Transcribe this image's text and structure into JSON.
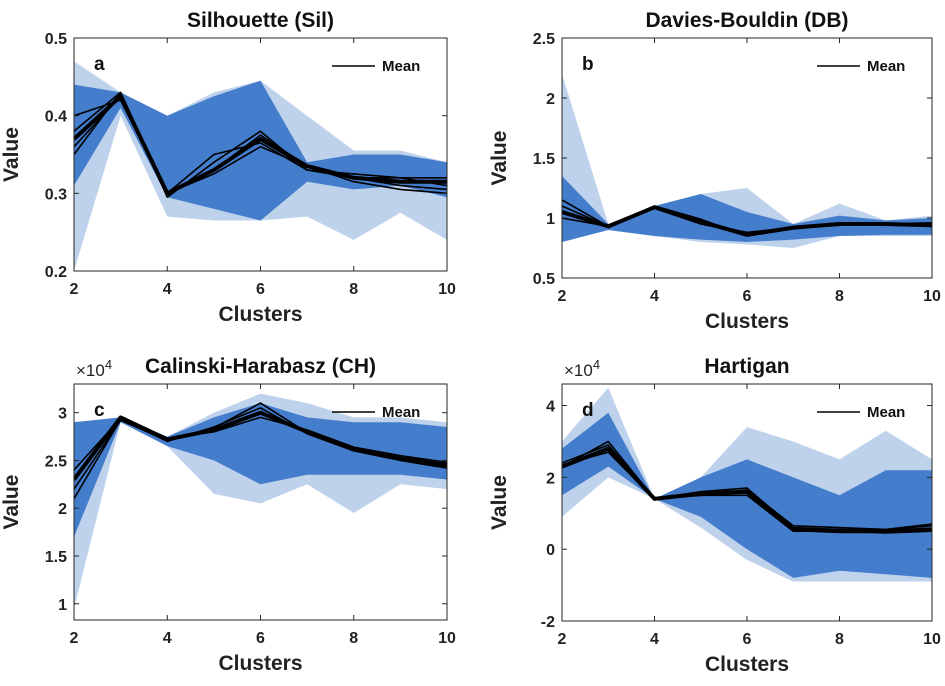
{
  "figure": {
    "theme": {
      "band_color": "#3a75c9",
      "light_band": "#a9c3e6",
      "line_color": "#000000"
    }
  },
  "chart_data": [
    {
      "panel": "a",
      "type": "line",
      "title": "Silhouette (Sil)",
      "xlabel": "Clusters",
      "ylabel": "Value",
      "x": [
        2,
        3,
        4,
        5,
        6,
        7,
        8,
        9,
        10
      ],
      "xlim": [
        2,
        10
      ],
      "ylim": [
        0.2,
        0.5
      ],
      "xticks": [
        2,
        4,
        6,
        8,
        10
      ],
      "yticks": [
        0.2,
        0.3,
        0.4,
        0.5
      ],
      "tick_labels_y": [
        "0.2",
        "0.3",
        "0.4",
        "0.5"
      ],
      "legend": {
        "label": "Mean",
        "placement": "top-right"
      },
      "band_max": [
        0.47,
        0.43,
        0.4,
        0.43,
        0.445,
        0.4,
        0.355,
        0.355,
        0.34
      ],
      "band_min": [
        0.2,
        0.4,
        0.27,
        0.265,
        0.265,
        0.27,
        0.24,
        0.275,
        0.24
      ],
      "dark_max": [
        0.44,
        0.43,
        0.4,
        0.425,
        0.445,
        0.34,
        0.35,
        0.35,
        0.34
      ],
      "dark_min": [
        0.31,
        0.41,
        0.295,
        0.28,
        0.265,
        0.315,
        0.305,
        0.31,
        0.295
      ],
      "series": [
        {
          "values": [
            0.37,
            0.425,
            0.3,
            0.33,
            0.37,
            0.335,
            0.32,
            0.315,
            0.315
          ]
        },
        {
          "values": [
            0.35,
            0.43,
            0.295,
            0.34,
            0.38,
            0.33,
            0.325,
            0.32,
            0.31
          ]
        },
        {
          "values": [
            0.4,
            0.42,
            0.3,
            0.325,
            0.36,
            0.335,
            0.32,
            0.31,
            0.305
          ]
        },
        {
          "values": [
            0.38,
            0.43,
            0.3,
            0.35,
            0.365,
            0.33,
            0.32,
            0.32,
            0.32
          ]
        },
        {
          "values": [
            0.36,
            0.425,
            0.3,
            0.33,
            0.375,
            0.335,
            0.315,
            0.305,
            0.3
          ]
        }
      ]
    },
    {
      "panel": "b",
      "type": "line",
      "title": "Davies-Bouldin (DB)",
      "xlabel": "Clusters",
      "ylabel": "Value",
      "x": [
        2,
        3,
        4,
        5,
        6,
        7,
        8,
        9,
        10
      ],
      "xlim": [
        2,
        10
      ],
      "ylim": [
        0.5,
        2.5
      ],
      "xticks": [
        2,
        4,
        6,
        8,
        10
      ],
      "yticks": [
        0.5,
        1,
        1.5,
        2,
        2.5
      ],
      "tick_labels_y": [
        "0.5",
        "1",
        "1.5",
        "2",
        "2.5"
      ],
      "legend": {
        "label": "Mean",
        "placement": "top-right"
      },
      "band_max": [
        2.2,
        0.95,
        1.1,
        1.2,
        1.25,
        0.95,
        1.12,
        0.98,
        1.02
      ],
      "band_min": [
        0.8,
        0.9,
        0.85,
        0.8,
        0.78,
        0.75,
        0.85,
        0.85,
        0.85
      ],
      "dark_max": [
        1.35,
        0.95,
        1.1,
        1.2,
        1.05,
        0.95,
        1.02,
        0.98,
        1.0
      ],
      "dark_min": [
        0.8,
        0.9,
        0.85,
        0.82,
        0.8,
        0.82,
        0.85,
        0.86,
        0.86
      ],
      "series": [
        {
          "values": [
            1.05,
            0.93,
            1.09,
            0.97,
            0.86,
            0.92,
            0.95,
            0.95,
            0.94
          ]
        },
        {
          "values": [
            1.15,
            0.93,
            1.08,
            0.95,
            0.87,
            0.92,
            0.96,
            0.94,
            0.95
          ]
        },
        {
          "values": [
            1.0,
            0.93,
            1.1,
            0.99,
            0.85,
            0.91,
            0.95,
            0.96,
            0.93
          ]
        },
        {
          "values": [
            1.1,
            0.93,
            1.09,
            0.96,
            0.88,
            0.92,
            0.94,
            0.95,
            0.96
          ]
        }
      ]
    },
    {
      "panel": "c",
      "type": "line",
      "title": "Calinski-Harabasz (CH)",
      "xlabel": "Clusters",
      "ylabel": "Value",
      "exponent_label": "×10",
      "exponent_power": "4",
      "x": [
        2,
        3,
        4,
        5,
        6,
        7,
        8,
        9,
        10
      ],
      "xlim": [
        2,
        10
      ],
      "ylim": [
        0.83,
        3.3
      ],
      "xticks": [
        2,
        4,
        6,
        8,
        10
      ],
      "yticks": [
        1,
        1.5,
        2,
        2.5,
        3
      ],
      "tick_labels_y": [
        "1",
        "1.5",
        "2",
        "2.5",
        "3"
      ],
      "legend": {
        "label": "Mean",
        "placement": "top-right"
      },
      "band_max": [
        2.9,
        2.95,
        2.75,
        3.0,
        3.2,
        3.1,
        2.95,
        2.95,
        2.9
      ],
      "band_min": [
        0.95,
        2.9,
        2.65,
        2.15,
        2.05,
        2.25,
        1.95,
        2.25,
        2.2
      ],
      "dark_max": [
        2.9,
        2.95,
        2.75,
        2.95,
        3.1,
        2.95,
        2.9,
        2.9,
        2.85
      ],
      "dark_min": [
        1.7,
        2.9,
        2.65,
        2.5,
        2.25,
        2.35,
        2.35,
        2.35,
        2.3
      ],
      "series": [
        {
          "values": [
            2.3,
            2.95,
            2.72,
            2.82,
            3.0,
            2.8,
            2.62,
            2.52,
            2.45
          ]
        },
        {
          "values": [
            2.1,
            2.93,
            2.7,
            2.85,
            3.05,
            2.78,
            2.6,
            2.5,
            2.42
          ]
        },
        {
          "values": [
            2.4,
            2.94,
            2.73,
            2.8,
            2.95,
            2.82,
            2.64,
            2.55,
            2.48
          ]
        },
        {
          "values": [
            2.2,
            2.92,
            2.71,
            2.84,
            3.1,
            2.79,
            2.61,
            2.51,
            2.44
          ]
        }
      ]
    },
    {
      "panel": "d",
      "type": "line",
      "title": "Hartigan",
      "xlabel": "Clusters",
      "ylabel": "Value",
      "exponent_label": "×10",
      "exponent_power": "4",
      "x": [
        2,
        3,
        4,
        5,
        6,
        7,
        8,
        9,
        10
      ],
      "xlim": [
        2,
        10
      ],
      "ylim": [
        -2,
        4.6
      ],
      "xticks": [
        2,
        4,
        6,
        8,
        10
      ],
      "yticks": [
        -2,
        0,
        2,
        4
      ],
      "tick_labels_y": [
        "-2",
        "0",
        "2",
        "4"
      ],
      "legend": {
        "label": "Mean",
        "placement": "top-right"
      },
      "band_max": [
        3.0,
        4.5,
        1.4,
        2.0,
        3.4,
        3.0,
        2.5,
        3.3,
        2.5
      ],
      "band_min": [
        0.9,
        2.0,
        1.4,
        0.6,
        -0.3,
        -0.9,
        -0.9,
        -0.9,
        -0.9
      ],
      "dark_max": [
        2.8,
        3.8,
        1.4,
        2.0,
        2.5,
        2.0,
        1.5,
        2.2,
        2.2
      ],
      "dark_min": [
        1.5,
        2.3,
        1.4,
        0.9,
        0.0,
        -0.8,
        -0.6,
        -0.7,
        -0.8
      ],
      "series": [
        {
          "values": [
            2.3,
            2.8,
            1.4,
            1.55,
            1.6,
            0.55,
            0.5,
            0.5,
            0.55
          ]
        },
        {
          "values": [
            2.4,
            2.9,
            1.4,
            1.6,
            1.7,
            0.6,
            0.55,
            0.55,
            0.65
          ]
        },
        {
          "values": [
            2.35,
            2.7,
            1.4,
            1.5,
            1.5,
            0.5,
            0.5,
            0.45,
            0.5
          ]
        },
        {
          "values": [
            2.3,
            3.0,
            1.4,
            1.5,
            1.65,
            0.65,
            0.6,
            0.55,
            0.7
          ]
        }
      ]
    }
  ]
}
